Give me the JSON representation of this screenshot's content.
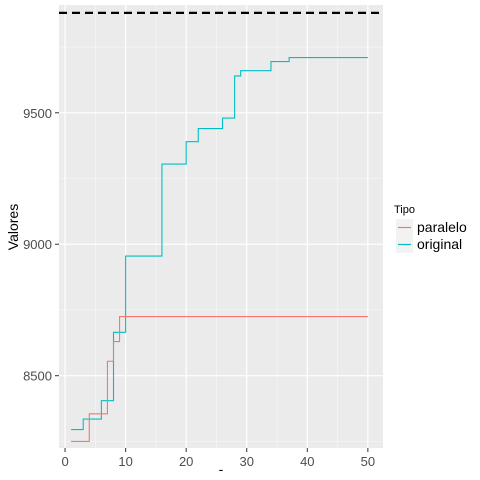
{
  "chart_data": {
    "type": "line",
    "xlabel": "-",
    "ylabel": "Valores",
    "xlim": [
      -1,
      52.5
    ],
    "ylim": [
      8225,
      9910
    ],
    "x_ticks": [
      0,
      10,
      20,
      30,
      40,
      50
    ],
    "y_ticks": [
      8500,
      9000,
      9500
    ],
    "grid": true,
    "background": "#ebebeb",
    "legend": {
      "title": "Tipo",
      "placement": "right",
      "entries": [
        "paralelo",
        "original"
      ]
    },
    "hline": {
      "y": 9880,
      "style": "dashed",
      "color": "#000000"
    },
    "series": [
      {
        "name": "paralelo",
        "color": "#f8766d",
        "x": [
          1,
          2,
          3,
          4,
          5,
          6,
          7,
          8,
          9,
          10,
          11,
          12,
          13,
          14,
          15,
          16,
          17,
          18,
          19,
          20,
          21,
          22,
          23,
          24,
          25,
          26,
          27,
          28,
          29,
          30,
          31,
          32,
          33,
          34,
          35,
          36,
          37,
          38,
          39,
          40,
          41,
          42,
          43,
          44,
          45,
          46,
          47,
          48,
          49,
          50
        ],
        "y": [
          8250,
          8250,
          8250,
          8355,
          8355,
          8355,
          8555,
          8630,
          8725,
          8725,
          8725,
          8725,
          8725,
          8725,
          8725,
          8725,
          8725,
          8725,
          8725,
          8725,
          8725,
          8725,
          8725,
          8725,
          8725,
          8725,
          8725,
          8725,
          8725,
          8725,
          8725,
          8725,
          8725,
          8725,
          8725,
          8725,
          8725,
          8725,
          8725,
          8725,
          8725,
          8725,
          8725,
          8725,
          8725,
          8725,
          8725,
          8725,
          8725,
          8725
        ]
      },
      {
        "name": "original",
        "color": "#00bfc4",
        "x": [
          1,
          2,
          3,
          4,
          5,
          6,
          7,
          8,
          9,
          10,
          11,
          12,
          13,
          14,
          15,
          16,
          17,
          18,
          19,
          20,
          21,
          22,
          23,
          24,
          25,
          26,
          27,
          28,
          29,
          30,
          31,
          32,
          33,
          34,
          35,
          36,
          37,
          38,
          39,
          40,
          41,
          42,
          43,
          44,
          45,
          46,
          47,
          48,
          49,
          50
        ],
        "y": [
          8295,
          8295,
          8335,
          8335,
          8335,
          8405,
          8405,
          8665,
          8665,
          8955,
          8955,
          8955,
          8955,
          8955,
          8955,
          9305,
          9305,
          9305,
          9305,
          9390,
          9390,
          9440,
          9440,
          9440,
          9440,
          9480,
          9480,
          9640,
          9660,
          9660,
          9660,
          9660,
          9660,
          9695,
          9695,
          9695,
          9710,
          9710,
          9710,
          9710,
          9710,
          9710,
          9710,
          9710,
          9710,
          9710,
          9710,
          9710,
          9710,
          9710
        ]
      }
    ]
  }
}
